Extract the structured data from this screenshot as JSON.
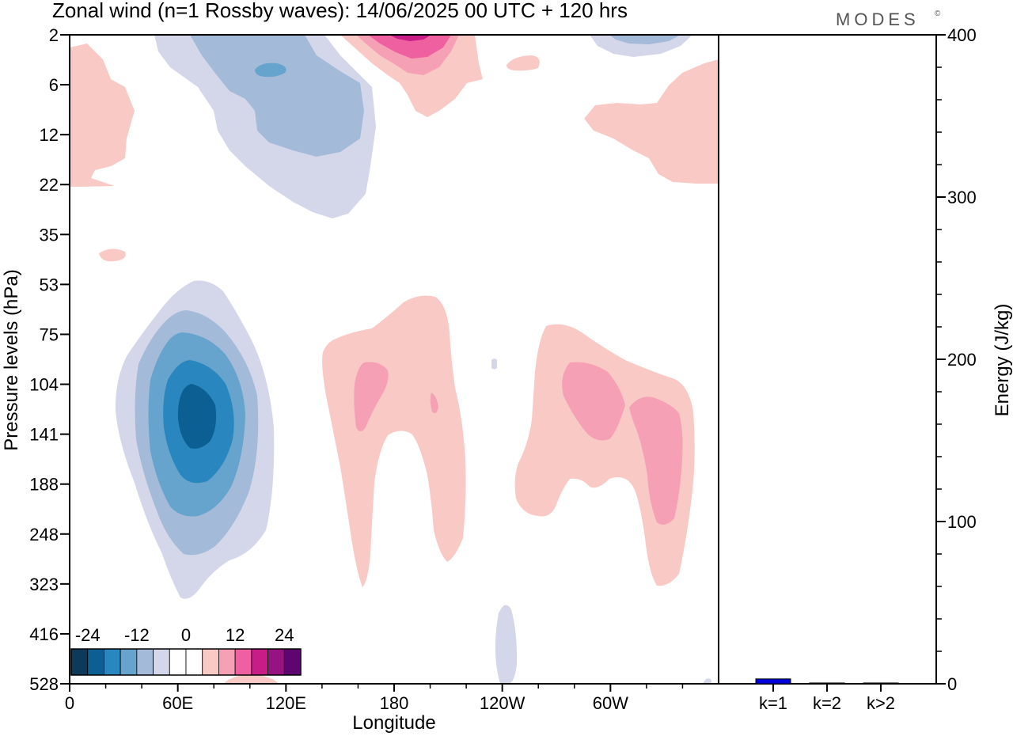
{
  "title": "Zonal wind (n=1 Rossby waves):  14/06/2025  00 UTC  + 120 hrs",
  "brand": "MODES",
  "brand_mark": "©",
  "chart_data": [
    {
      "type": "heatmap",
      "title": "Zonal wind (n=1 Rossby waves):  14/06/2025  00 UTC  + 120 hrs",
      "xlabel": "Longitude",
      "ylabel": "Pressure levels (hPa)",
      "x_ticks": [
        "0",
        "60E",
        "120E",
        "180",
        "120W",
        "60W"
      ],
      "x_tick_values": [
        0,
        60,
        120,
        180,
        240,
        300
      ],
      "xlim": [
        0,
        360
      ],
      "y_ticks": [
        "2",
        "6",
        "12",
        "22",
        "35",
        "53",
        "75",
        "104",
        "141",
        "188",
        "248",
        "323",
        "416",
        "528"
      ],
      "y_scale": "pressure levels (equally spaced, top = 2 hPa)",
      "colorbar": {
        "labels": [
          "-24",
          "-12",
          "0",
          "12",
          "24"
        ],
        "colors": [
          "#0d3a5a",
          "#0b5f93",
          "#2a86be",
          "#66a3cd",
          "#a4bad9",
          "#d4d6ea",
          "#ffffff",
          "#ffffff",
          "#f9c9c5",
          "#f6a0b5",
          "#ef60a0",
          "#c81d87",
          "#961382",
          "#5d0670"
        ]
      },
      "features": [
        {
          "sign": "negative",
          "min": -24,
          "lon_center": 68,
          "level_center": "104-141 hPa"
        },
        {
          "sign": "negative",
          "min": -12,
          "lon_center": 75,
          "level_center": "6-12 hPa"
        },
        {
          "sign": "positive",
          "max": 12,
          "lon_center": 165,
          "level_center": "104-141 hPa"
        },
        {
          "sign": "positive",
          "max": 12,
          "lon_center": 305,
          "level_center": "104-188 hPa"
        },
        {
          "sign": "positive",
          "max": 24,
          "lon_center": 190,
          "level_center": "2 hPa"
        }
      ]
    },
    {
      "type": "bar",
      "categories": [
        "k=1",
        "k=2",
        "k>2"
      ],
      "values": [
        3,
        0.5,
        0.5
      ],
      "ylabel": "Energy (J/kg)",
      "ylim": [
        0,
        400
      ],
      "y_ticks": [
        0,
        100,
        200,
        300,
        400
      ],
      "colors": [
        "#0000dd",
        "#444444",
        "#444444"
      ]
    }
  ]
}
